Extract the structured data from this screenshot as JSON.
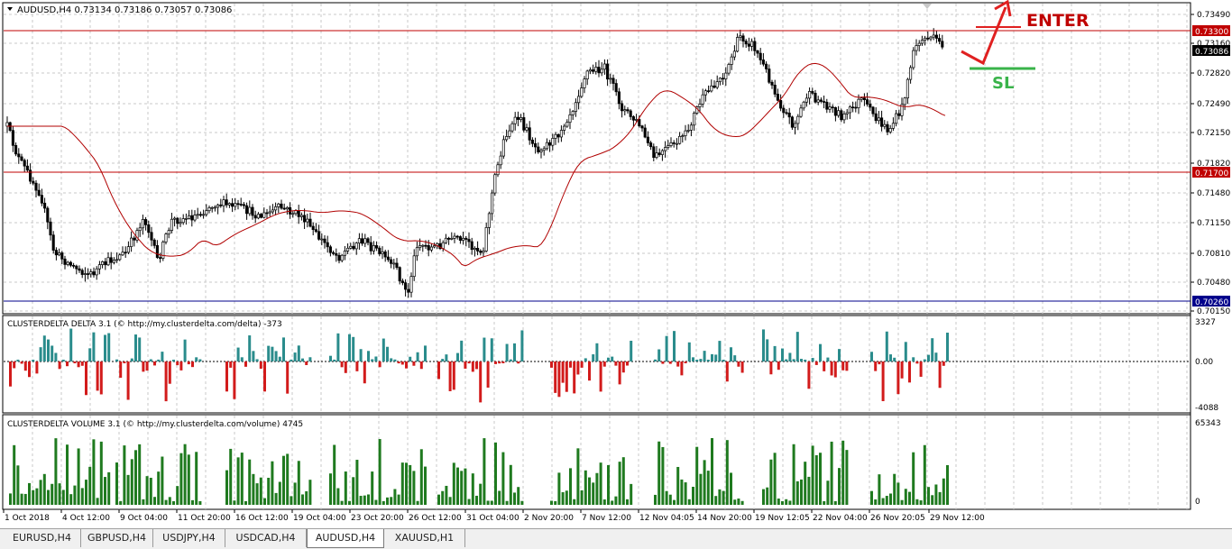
{
  "chart": {
    "title": "AUDUSD,H4  0.73134 0.73186 0.73057 0.73086",
    "price_axis": [
      "0.73490",
      "0.73160",
      "0.72820",
      "0.72490",
      "0.72150",
      "0.71820",
      "0.71480",
      "0.71150",
      "0.70810",
      "0.70480",
      "0.70150"
    ],
    "current_price": "0.73086",
    "level_top": "0.73300",
    "level_mid": "0.71700",
    "level_bottom": "0.70260",
    "annotation_enter": "ENTER",
    "annotation_sl": "SL",
    "colors": {
      "bull": "#0a0a0a",
      "level": "#c00000",
      "ma": "#b00000",
      "support": "#00008b",
      "enter": "#e02020",
      "sl": "#39b34a"
    }
  },
  "delta_panel": {
    "title": "CLUSTERDELTA DELTA 3.1 (© http://my.clusterdelta.com/delta) -373",
    "axis": [
      "3327",
      "0.00",
      "-4088"
    ],
    "colors": {
      "pos": "#2a8c8c",
      "neg": "#d21b1b"
    }
  },
  "volume_panel": {
    "title": "CLUSTERDELTA VOLUME 3.1 (© http://my.clusterdelta.com/volume) 4745",
    "axis": [
      "65343",
      "0"
    ],
    "colors": {
      "bar": "#1f7a1f"
    }
  },
  "time_axis": [
    "1 Oct 2018",
    "4 Oct 12:00",
    "9 Oct 04:00",
    "11 Oct 20:00",
    "16 Oct 12:00",
    "19 Oct 04:00",
    "23 Oct 20:00",
    "26 Oct 12:00",
    "31 Oct 04:00",
    "2 Nov 20:00",
    "7 Nov 12:00",
    "12 Nov 04:05",
    "14 Nov 20:00",
    "19 Nov 12:05",
    "22 Nov 04:00",
    "26 Nov 20:05",
    "29 Nov 12:00"
  ],
  "tabs": [
    "EURUSD,H4",
    "GBPUSD,H4",
    "USDJPY,H4",
    "USDCAD,H4",
    "AUDUSD,H4",
    "XAUUSD,H1"
  ],
  "active_tab": 4
}
